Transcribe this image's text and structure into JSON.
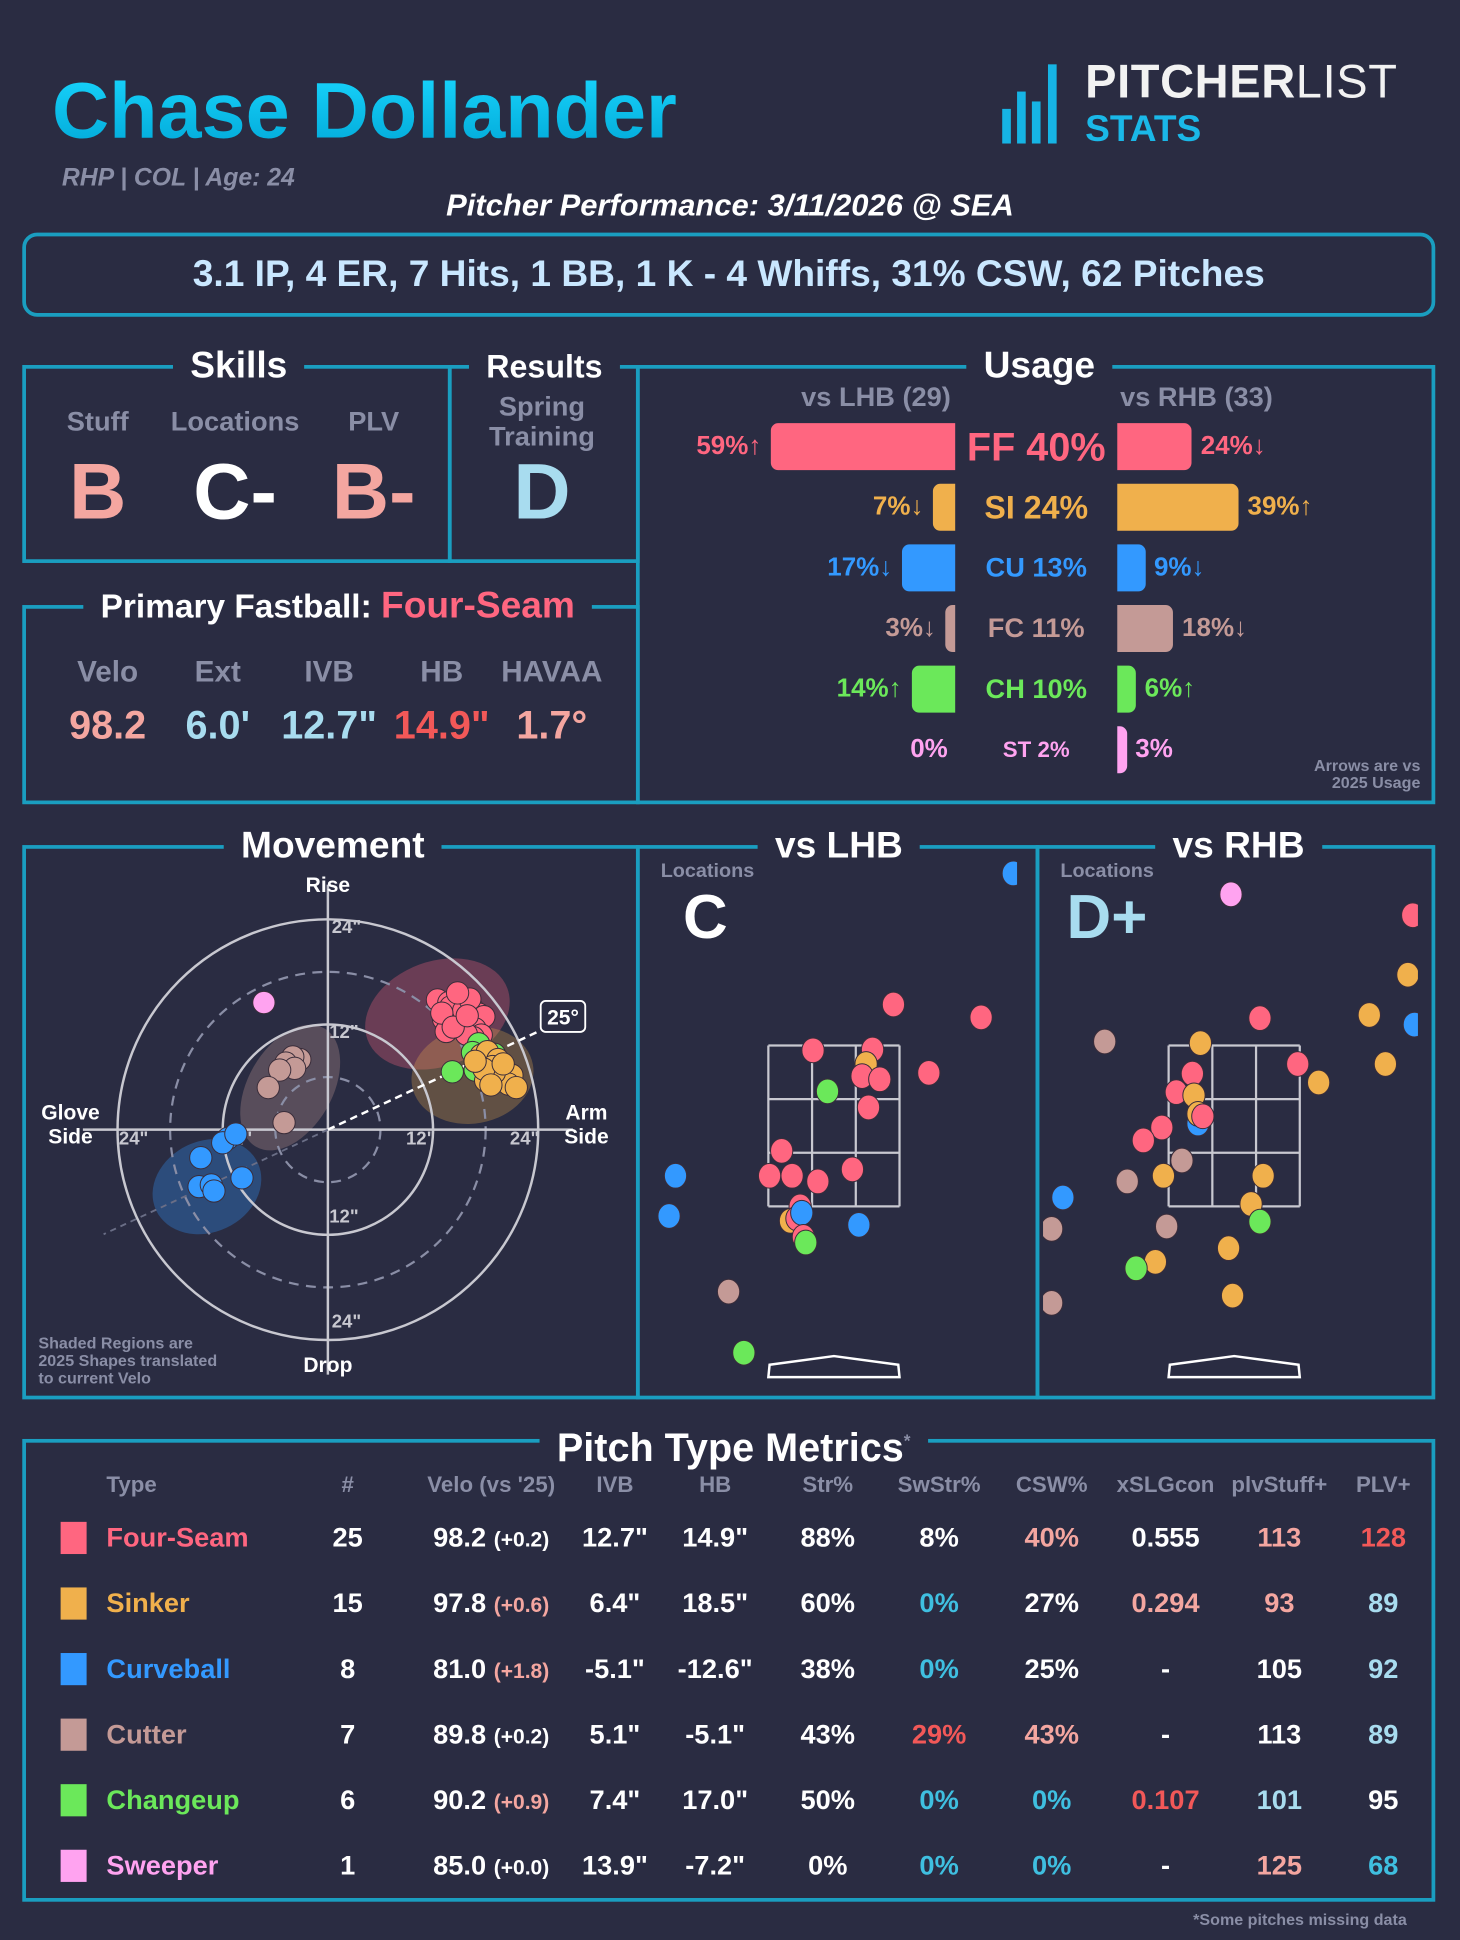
{
  "header": {
    "player_name": "Chase Dollander",
    "player_info": "RHP | COL | Age: 24",
    "logo": {
      "top_bold": "PITCHER",
      "top_thin": "LIST",
      "bottom": "STATS"
    },
    "performance_title": "Pitcher Performance: 3/11/2026 @ SEA",
    "summary": "3.1 IP, 4 ER, 7 Hits, 1 BB, 1 K - 4 Whiffs, 31% CSW, 62 Pitches"
  },
  "colors": {
    "FF": "#ff6680",
    "SI": "#f0b04c",
    "CU": "#3399ff",
    "FC": "#c49a96",
    "CH": "#6be85a",
    "ST": "#ffa3f0",
    "border": "#1a9ec0",
    "w": "#ffffff",
    "s": "#f4a6a0",
    "r": "#f25858",
    "c": "#3fbfe0",
    "lb": "#a8dcef"
  },
  "skills": {
    "title": "Skills",
    "items": [
      {
        "label": "Stuff",
        "grade": "B",
        "color": "#f4a6a0"
      },
      {
        "label": "Locations",
        "grade": "C-",
        "color": "#ffffff"
      },
      {
        "label": "PLV",
        "grade": "B-",
        "color": "#f4a6a0"
      }
    ]
  },
  "results": {
    "title": "Results",
    "label_line1": "Spring",
    "label_line2": "Training",
    "grade": "D",
    "color": "#a8dcef"
  },
  "primary_fastball": {
    "title": "Primary Fastball:",
    "pitch": "Four-Seam",
    "metrics": [
      {
        "label": "Velo",
        "value": "98.2",
        "color": "#f4a6a0"
      },
      {
        "label": "Ext",
        "value": "6.0'",
        "color": "#a8dcef"
      },
      {
        "label": "IVB",
        "value": "12.7\"",
        "color": "#a8dcef"
      },
      {
        "label": "HB",
        "value": "14.9\"",
        "color": "#f25858"
      },
      {
        "label": "HAVAA",
        "value": "1.7°",
        "color": "#f4a6a0"
      }
    ]
  },
  "usage": {
    "title": "Usage",
    "lhb_header": "vs LHB (29)",
    "rhb_header": "vs RHB (33)",
    "note_line1": "Arrows are vs",
    "note_line2": "2025 Usage",
    "rows": [
      {
        "code": "FF",
        "center": "FF 40%",
        "lhb": 59,
        "lhb_label": "59%↑",
        "rhb": 24,
        "rhb_label": "24%↓"
      },
      {
        "code": "SI",
        "center": "SI 24%",
        "lhb": 7,
        "lhb_label": "7%↓",
        "rhb": 39,
        "rhb_label": "39%↑"
      },
      {
        "code": "CU",
        "center": "CU 13%",
        "lhb": 17,
        "lhb_label": "17%↓",
        "rhb": 9,
        "rhb_label": "9%↓"
      },
      {
        "code": "FC",
        "center": "FC 11%",
        "lhb": 3,
        "lhb_label": "3%↓",
        "rhb": 18,
        "rhb_label": "18%↓"
      },
      {
        "code": "CH",
        "center": "CH 10%",
        "lhb": 14,
        "lhb_label": "14%↑",
        "rhb": 6,
        "rhb_label": "6%↑"
      },
      {
        "code": "ST",
        "center": "ST 2%",
        "lhb": 0,
        "lhb_label": "0%",
        "rhb": 3,
        "rhb_label": "3%"
      }
    ]
  },
  "movement": {
    "title": "Movement",
    "axis_top": "Rise",
    "axis_bottom": "Drop",
    "axis_left_1": "Glove",
    "axis_left_2": "Side",
    "axis_right_1": "Arm",
    "axis_right_2": "Side",
    "ring_labels": {
      "top_24": "24\"",
      "top_12": "12\"",
      "bottom_12": "12\"",
      "bottom_24": "24\"",
      "left_24": "24\"",
      "left_12": "12\"",
      "right_12": "12\"",
      "right_24": "24\""
    },
    "arm_angle": 25,
    "arm_angle_label": "25°",
    "note_line1": "Shaded Regions are",
    "note_line2": "2025 Shapes translated",
    "note_line3": "to current Velo",
    "regions_2025": [
      {
        "code": "FF",
        "hb": 12.5,
        "ivb": 13.2,
        "rx": 8.5,
        "ry": 6,
        "rot": -20
      },
      {
        "code": "SI",
        "hb": 16.5,
        "ivb": 6.2,
        "rx": 7,
        "ry": 5.5,
        "rot": -10
      },
      {
        "code": "FC",
        "hb": -4.3,
        "ivb": 4.8,
        "rx": 4.8,
        "ry": 7.8,
        "rot": 30
      },
      {
        "code": "CU",
        "hb": -13.8,
        "ivb": -6.5,
        "rx": 6.4,
        "ry": 5.2,
        "rot": -25
      }
    ],
    "pitches": {
      "FF": [
        [
          12.5,
          14.8
        ],
        [
          13.8,
          14.5
        ],
        [
          15.0,
          15.2
        ],
        [
          15.8,
          14.6
        ],
        [
          14.2,
          13.5
        ],
        [
          16.5,
          13.8
        ],
        [
          17.2,
          13.2
        ],
        [
          15.5,
          12.8
        ],
        [
          13.2,
          12.6
        ],
        [
          14.6,
          12.2
        ],
        [
          16.0,
          12.4
        ],
        [
          17.8,
          12.9
        ],
        [
          15.2,
          11.8
        ],
        [
          13.5,
          11.2
        ],
        [
          16.8,
          11.5
        ],
        [
          14.0,
          14.0
        ],
        [
          15.5,
          13.6
        ],
        [
          16.2,
          14.9
        ],
        [
          14.8,
          15.6
        ],
        [
          13.0,
          13.3
        ],
        [
          17.5,
          10.8
        ],
        [
          16.6,
          10.5
        ],
        [
          15.8,
          10.9
        ],
        [
          14.3,
          11.7
        ],
        [
          15.9,
          13.0
        ]
      ],
      "CH": [
        [
          14.2,
          6.6
        ],
        [
          17.2,
          9.8
        ],
        [
          16.5,
          8.8
        ],
        [
          18.3,
          8.2
        ],
        [
          16.8,
          6.8
        ],
        [
          19.0,
          8.6
        ]
      ],
      "SI": [
        [
          17.5,
          8.5
        ],
        [
          18.2,
          8.9
        ],
        [
          19.4,
          8.0
        ],
        [
          18.8,
          7.2
        ],
        [
          20.2,
          6.8
        ],
        [
          21.0,
          6.2
        ],
        [
          19.6,
          5.8
        ],
        [
          18.0,
          5.6
        ],
        [
          20.6,
          5.2
        ],
        [
          21.5,
          4.8
        ],
        [
          19.0,
          6.5
        ],
        [
          17.8,
          6.9
        ],
        [
          18.6,
          5.1
        ],
        [
          20.0,
          7.5
        ],
        [
          16.8,
          7.8
        ]
      ],
      "FC": [
        [
          -3.2,
          8.0
        ],
        [
          -4.0,
          8.3
        ],
        [
          -4.8,
          7.6
        ],
        [
          -3.8,
          7.0
        ],
        [
          -5.5,
          6.8
        ],
        [
          -6.8,
          4.8
        ],
        [
          -5.0,
          0.8
        ]
      ],
      "CU": [
        [
          -11.4,
          -1.0
        ],
        [
          -12.0,
          -1.5
        ],
        [
          -10.5,
          -0.5
        ],
        [
          -14.5,
          -3.2
        ],
        [
          -14.7,
          -6.5
        ],
        [
          -13.3,
          -6.3
        ],
        [
          -13.0,
          -7.0
        ],
        [
          -9.8,
          -5.5
        ]
      ],
      "ST": [
        [
          -7.3,
          14.5
        ]
      ]
    }
  },
  "locations": [
    {
      "title": "vs LHB",
      "label": "Locations",
      "grade": "C",
      "grade_color": "#ffffff",
      "pitches": [
        [
          "FF",
          0.74,
          4.01
        ],
        [
          "FF",
          1.83,
          3.85
        ],
        [
          "FF",
          -0.26,
          3.44
        ],
        [
          "FF",
          0.48,
          3.45
        ],
        [
          "SI",
          0.4,
          3.27
        ],
        [
          "FF",
          0.35,
          3.12
        ],
        [
          "FF",
          0.57,
          3.08
        ],
        [
          "FF",
          1.18,
          3.16
        ],
        [
          "CH",
          -0.08,
          2.93
        ],
        [
          "FF",
          0.43,
          2.73
        ],
        [
          "FF",
          -0.65,
          2.19
        ],
        [
          "FF",
          -0.8,
          1.88
        ],
        [
          "FF",
          -0.52,
          1.88
        ],
        [
          "FF",
          -0.2,
          1.81
        ],
        [
          "FF",
          0.23,
          1.96
        ],
        [
          "FF",
          -0.42,
          1.5
        ],
        [
          "SI",
          -0.54,
          1.32
        ],
        [
          "FF",
          -0.46,
          1.35
        ],
        [
          "CU",
          -0.4,
          1.42
        ],
        [
          "FF",
          -0.38,
          1.12
        ],
        [
          "CH",
          -0.35,
          1.05
        ],
        [
          "CH",
          -1.12,
          -0.32
        ],
        [
          "CU",
          -1.97,
          1.88
        ],
        [
          "CU",
          -2.05,
          1.38
        ],
        [
          "CU",
          0.31,
          1.27
        ],
        [
          "CU",
          2.23,
          5.64
        ],
        [
          "FC",
          -1.31,
          0.44
        ]
      ]
    },
    {
      "title": "vs RHB",
      "label": "Locations",
      "grade": "D+",
      "grade_color": "#a8dcef",
      "pitches": [
        [
          "ST",
          -0.04,
          5.38
        ],
        [
          "FF",
          2.22,
          5.12
        ],
        [
          "SI",
          2.16,
          4.38
        ],
        [
          "SI",
          1.68,
          3.88
        ],
        [
          "CU",
          2.24,
          3.76
        ],
        [
          "SI",
          1.88,
          3.27
        ],
        [
          "FF",
          0.32,
          3.84
        ],
        [
          "FF",
          0.79,
          3.27
        ],
        [
          "SI",
          1.05,
          3.04
        ],
        [
          "SI",
          -0.42,
          3.53
        ],
        [
          "FF",
          -0.52,
          3.15
        ],
        [
          "FF",
          -0.72,
          2.92
        ],
        [
          "SI",
          -0.5,
          2.88
        ],
        [
          "CU",
          -0.45,
          2.53
        ],
        [
          "SI",
          -0.45,
          2.65
        ],
        [
          "FF",
          -0.39,
          2.62
        ],
        [
          "FF",
          -0.9,
          2.48
        ],
        [
          "FF",
          -1.13,
          2.32
        ],
        [
          "FC",
          -1.61,
          3.55
        ],
        [
          "FC",
          -0.65,
          2.07
        ],
        [
          "FC",
          -1.33,
          1.81
        ],
        [
          "SI",
          -0.88,
          1.88
        ],
        [
          "SI",
          0.36,
          1.88
        ],
        [
          "SI",
          0.21,
          1.53
        ],
        [
          "CH",
          0.32,
          1.31
        ],
        [
          "CU",
          -2.13,
          1.61
        ],
        [
          "FC",
          -0.84,
          1.25
        ],
        [
          "FC",
          -2.27,
          1.22
        ],
        [
          "FC",
          -2.27,
          0.3
        ],
        [
          "SI",
          -0.07,
          0.98
        ],
        [
          "SI",
          -0.98,
          0.81
        ],
        [
          "CH",
          -1.22,
          0.73
        ],
        [
          "SI",
          -0.02,
          0.39
        ]
      ]
    }
  ],
  "metrics": {
    "title": "Pitch Type Metrics",
    "title_mark": "*",
    "footnote": "*Some pitches missing data",
    "columns": [
      "Type",
      "#",
      "Velo (vs '25)",
      "IVB",
      "HB",
      "Str%",
      "SwStr%",
      "CSW%",
      "xSLGcon",
      "plvStuff+",
      "PLV+"
    ],
    "rows": [
      {
        "code": "FF",
        "type": "Four-Seam",
        "velo": "98.2",
        "diff": "(+0.2)",
        "diff_c": "w",
        "cells": [
          [
            "25",
            "w"
          ],
          [
            "12.7\"",
            "w"
          ],
          [
            "14.9\"",
            "w"
          ],
          [
            "88%",
            "w"
          ],
          [
            "8%",
            "w"
          ],
          [
            "40%",
            "s"
          ],
          [
            "0.555",
            "w"
          ],
          [
            "113",
            "s"
          ],
          [
            "128",
            "r"
          ]
        ]
      },
      {
        "code": "SI",
        "type": "Sinker",
        "velo": "97.8",
        "diff": "(+0.6)",
        "diff_c": "s",
        "cells": [
          [
            "15",
            "w"
          ],
          [
            "6.4\"",
            "w"
          ],
          [
            "18.5\"",
            "w"
          ],
          [
            "60%",
            "w"
          ],
          [
            "0%",
            "c"
          ],
          [
            "27%",
            "w"
          ],
          [
            "0.294",
            "s"
          ],
          [
            "93",
            "s"
          ],
          [
            "89",
            "lb"
          ]
        ]
      },
      {
        "code": "CU",
        "type": "Curveball",
        "velo": "81.0",
        "diff": "(+1.8)",
        "diff_c": "s",
        "cells": [
          [
            "8",
            "w"
          ],
          [
            "-5.1\"",
            "w"
          ],
          [
            "-12.6\"",
            "w"
          ],
          [
            "38%",
            "w"
          ],
          [
            "0%",
            "c"
          ],
          [
            "25%",
            "w"
          ],
          [
            "-",
            "w"
          ],
          [
            "105",
            "w"
          ],
          [
            "92",
            "lb"
          ]
        ]
      },
      {
        "code": "FC",
        "type": "Cutter",
        "velo": "89.8",
        "diff": "(+0.2)",
        "diff_c": "w",
        "cells": [
          [
            "7",
            "w"
          ],
          [
            "5.1\"",
            "w"
          ],
          [
            "-5.1\"",
            "w"
          ],
          [
            "43%",
            "w"
          ],
          [
            "29%",
            "r"
          ],
          [
            "43%",
            "s"
          ],
          [
            "-",
            "w"
          ],
          [
            "113",
            "w"
          ],
          [
            "89",
            "lb"
          ]
        ]
      },
      {
        "code": "CH",
        "type": "Changeup",
        "velo": "90.2",
        "diff": "(+0.9)",
        "diff_c": "s",
        "cells": [
          [
            "6",
            "w"
          ],
          [
            "7.4\"",
            "w"
          ],
          [
            "17.0\"",
            "w"
          ],
          [
            "50%",
            "w"
          ],
          [
            "0%",
            "c"
          ],
          [
            "0%",
            "c"
          ],
          [
            "0.107",
            "r"
          ],
          [
            "101",
            "lb"
          ],
          [
            "95",
            "w"
          ]
        ]
      },
      {
        "code": "ST",
        "type": "Sweeper",
        "velo": "85.0",
        "diff": "(+0.0)",
        "diff_c": "w",
        "cells": [
          [
            "1",
            "w"
          ],
          [
            "13.9\"",
            "w"
          ],
          [
            "-7.2\"",
            "w"
          ],
          [
            "0%",
            "w"
          ],
          [
            "0%",
            "c"
          ],
          [
            "0%",
            "c"
          ],
          [
            "-",
            "w"
          ],
          [
            "125",
            "s"
          ],
          [
            "68",
            "c"
          ]
        ]
      }
    ]
  }
}
